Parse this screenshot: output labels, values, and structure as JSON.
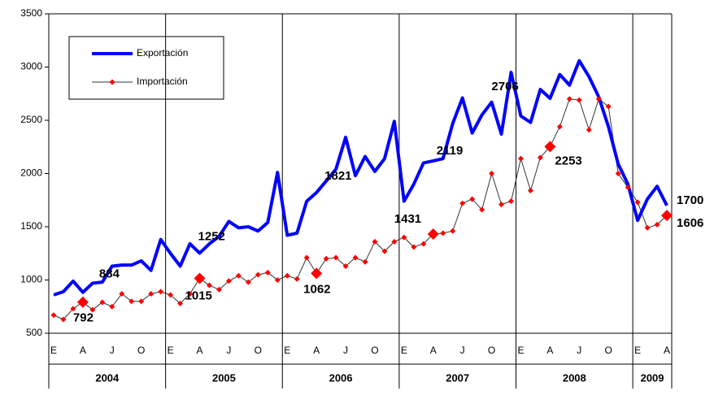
{
  "chart_data": {
    "type": "line",
    "categories": [
      "E",
      null,
      null,
      "A",
      null,
      null,
      "J",
      null,
      null,
      "O",
      null,
      null,
      "E",
      null,
      null,
      "A",
      null,
      null,
      "J",
      null,
      null,
      "O",
      null,
      null,
      "E",
      null,
      null,
      "A",
      null,
      null,
      "J",
      null,
      null,
      "O",
      null,
      null,
      "E",
      null,
      null,
      "A",
      null,
      null,
      "J",
      null,
      null,
      "O",
      null,
      null,
      "E",
      null,
      null,
      "A",
      null,
      null,
      "J",
      null,
      null,
      "O",
      null,
      null,
      "E",
      null,
      null,
      "A"
    ],
    "groups": [
      {
        "label": "2004",
        "count": 12
      },
      {
        "label": "2005",
        "count": 12
      },
      {
        "label": "2006",
        "count": 12
      },
      {
        "label": "2007",
        "count": 12
      },
      {
        "label": "2008",
        "count": 12
      },
      {
        "label": "2009",
        "count": 4
      }
    ],
    "series": [
      {
        "name": "Exportación",
        "color": "#0000ff",
        "values": [
          860,
          890,
          990,
          884,
          970,
          980,
          1130,
          1140,
          1140,
          1180,
          1090,
          1380,
          1250,
          1130,
          1340,
          1252,
          1340,
          1410,
          1550,
          1490,
          1500,
          1460,
          1540,
          2010,
          1420,
          1440,
          1740,
          1821,
          1930,
          2040,
          2340,
          1980,
          2160,
          2020,
          2140,
          2490,
          1740,
          1900,
          2100,
          2119,
          2140,
          2470,
          2710,
          2380,
          2550,
          2670,
          2370,
          2950,
          2540,
          2480,
          2790,
          2706,
          2930,
          2830,
          3060,
          2910,
          2720,
          2440,
          2090,
          1900,
          1560,
          1760,
          1880,
          1700
        ]
      },
      {
        "name": "Importación",
        "color": "#ff0000",
        "values": [
          670,
          630,
          730,
          792,
          720,
          790,
          750,
          870,
          800,
          800,
          870,
          890,
          860,
          780,
          870,
          1015,
          950,
          910,
          990,
          1040,
          980,
          1050,
          1070,
          1000,
          1040,
          1010,
          1210,
          1062,
          1200,
          1210,
          1130,
          1210,
          1170,
          1360,
          1270,
          1360,
          1400,
          1310,
          1340,
          1431,
          1440,
          1460,
          1720,
          1760,
          1660,
          2000,
          1710,
          1740,
          2140,
          1840,
          2150,
          2253,
          2440,
          2700,
          2690,
          2410,
          2700,
          2630,
          2000,
          1870,
          1730,
          1490,
          1520,
          1606
        ]
      }
    ],
    "labeled_indices": [
      3,
      15,
      27,
      39,
      51,
      63
    ],
    "ylim": [
      500,
      3500
    ],
    "yticks": [
      500,
      1000,
      1500,
      2000,
      2500,
      3000,
      3500
    ]
  }
}
